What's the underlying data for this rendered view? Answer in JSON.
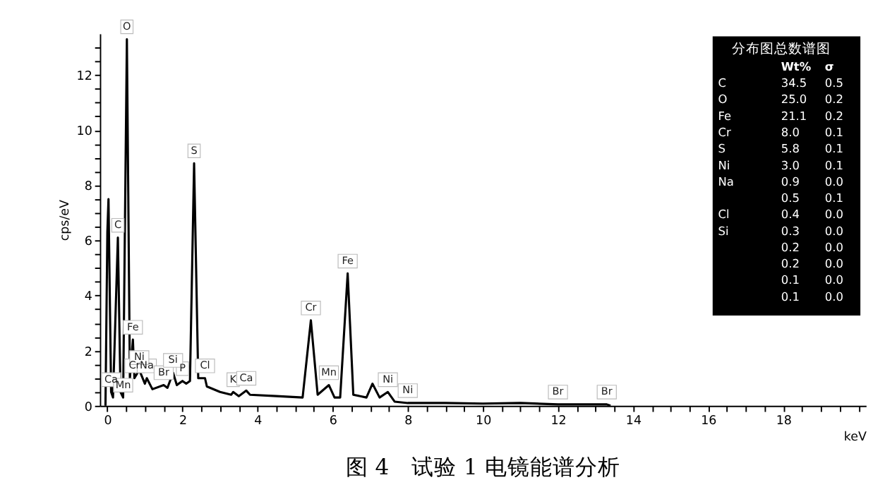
{
  "chart_data": [
    {
      "type": "line",
      "title": "图 4　试验 1 电镜能谱分析",
      "xlabel": "keV",
      "ylabel": "cps/eV",
      "x": [
        -0.05,
        0.0,
        0.03,
        0.1,
        0.15,
        0.28,
        0.35,
        0.42,
        0.52,
        0.6,
        0.68,
        0.72,
        0.85,
        1.0,
        1.05,
        1.2,
        1.5,
        1.6,
        1.75,
        1.85,
        2.0,
        2.1,
        2.2,
        2.31,
        2.42,
        2.6,
        2.65,
        3.0,
        3.3,
        3.35,
        3.5,
        3.7,
        3.8,
        4.5,
        5.2,
        5.42,
        5.6,
        5.9,
        6.05,
        6.2,
        6.4,
        6.55,
        6.9,
        7.06,
        7.25,
        7.47,
        7.65,
        8.0,
        9.0,
        10.0,
        11.0,
        12.0,
        13.3,
        13.4
      ],
      "series": [
        {
          "color": "#000000",
          "values": [
            0,
            6.3,
            7.5,
            0.5,
            0.3,
            6.1,
            0.5,
            0.3,
            13.3,
            1.0,
            2.4,
            1.0,
            1.3,
            0.8,
            1.0,
            0.6,
            0.75,
            0.65,
            1.2,
            0.75,
            0.9,
            0.8,
            0.9,
            8.8,
            1.0,
            1.0,
            0.7,
            0.5,
            0.4,
            0.5,
            0.35,
            0.55,
            0.4,
            0.35,
            0.3,
            3.1,
            0.4,
            0.75,
            0.3,
            0.3,
            4.8,
            0.4,
            0.3,
            0.8,
            0.3,
            0.5,
            0.15,
            0.1,
            0.1,
            0.08,
            0.1,
            0.05,
            0.05,
            0
          ]
        }
      ],
      "xlim": [
        -0.2,
        20.2
      ],
      "ylim": [
        0,
        13.5
      ],
      "xticks": [
        0,
        {
          "value": 0.5,
          "label": null
        },
        {
          "value": 1,
          "label": null
        },
        {
          "value": 1.5,
          "label": null
        },
        2,
        {
          "value": 2.5,
          "label": null
        },
        {
          "value": 3,
          "label": null
        },
        {
          "value": 3.5,
          "label": null
        },
        4,
        {
          "value": 4.5,
          "label": null
        },
        {
          "value": 5,
          "label": null
        },
        {
          "value": 5.5,
          "label": null
        },
        6,
        {
          "value": 6.5,
          "label": null
        },
        {
          "value": 7,
          "label": null
        },
        {
          "value": 7.5,
          "label": null
        },
        8,
        {
          "value": 8.5,
          "label": null
        },
        {
          "value": 9,
          "label": null
        },
        {
          "value": 9.5,
          "label": null
        },
        10,
        {
          "value": 10.5,
          "label": null
        },
        {
          "value": 11,
          "label": null
        },
        {
          "value": 11.5,
          "label": null
        },
        12,
        {
          "value": 12.5,
          "label": null
        },
        {
          "value": 13,
          "label": null
        },
        {
          "value": 13.5,
          "label": null
        },
        14,
        {
          "value": 14.5,
          "label": null
        },
        {
          "value": 15,
          "label": null
        },
        {
          "value": 15.5,
          "label": null
        },
        16,
        {
          "value": 16.5,
          "label": null
        },
        {
          "value": 17,
          "label": null
        },
        {
          "value": 17.5,
          "label": null
        },
        18,
        {
          "value": 18.5,
          "label": null
        },
        {
          "value": 19,
          "label": null
        },
        {
          "value": 19.5,
          "label": null
        },
        {
          "value": 20,
          "label": null
        }
      ],
      "yticks": [
        0,
        {
          "value": 0.5,
          "label": null
        },
        {
          "value": 1,
          "label": null
        },
        {
          "value": 1.5,
          "label": null
        },
        2,
        {
          "value": 2.5,
          "label": null
        },
        {
          "value": 3,
          "label": null
        },
        {
          "value": 3.5,
          "label": null
        },
        4,
        {
          "value": 4.5,
          "label": null
        },
        {
          "value": 5,
          "label": null
        },
        {
          "value": 5.5,
          "label": null
        },
        6,
        {
          "value": 6.5,
          "label": null
        },
        {
          "value": 7,
          "label": null
        },
        {
          "value": 7.5,
          "label": null
        },
        8,
        {
          "value": 8.5,
          "label": null
        },
        {
          "value": 9,
          "label": null
        },
        {
          "value": 9.5,
          "label": null
        },
        10,
        {
          "value": 10.5,
          "label": null
        },
        {
          "value": 11,
          "label": null
        },
        {
          "value": 11.5,
          "label": null
        },
        12,
        {
          "value": 12.5,
          "label": null
        },
        {
          "value": 13,
          "label": null
        }
      ],
      "grid": false,
      "annotations": [
        {
          "text": "O",
          "x": 0.52,
          "y": 13.3
        },
        {
          "text": "C",
          "x": 0.28,
          "y": 6.1
        },
        {
          "text": "Fe",
          "x": 0.68,
          "y": 2.4
        },
        {
          "text": "Cr",
          "x": 0.72,
          "y": 1.0
        },
        {
          "text": "Ca",
          "x": 0.1,
          "y": 0.5
        },
        {
          "text": "Na",
          "x": 1.05,
          "y": 1.0
        },
        {
          "text": "Ni",
          "x": 0.85,
          "y": 1.3
        },
        {
          "text": "Mn",
          "x": 0.42,
          "y": 0.3
        },
        {
          "text": "Br",
          "x": 1.5,
          "y": 0.75
        },
        {
          "text": "P",
          "x": 2.0,
          "y": 0.9
        },
        {
          "text": "Si",
          "x": 1.75,
          "y": 1.2
        },
        {
          "text": "S",
          "x": 2.31,
          "y": 8.8
        },
        {
          "text": "Cl",
          "x": 2.6,
          "y": 1.0
        },
        {
          "text": "K",
          "x": 3.35,
          "y": 0.5
        },
        {
          "text": "Ca",
          "x": 3.7,
          "y": 0.55
        },
        {
          "text": "Cr",
          "x": 5.42,
          "y": 3.1
        },
        {
          "text": "Mn",
          "x": 5.9,
          "y": 0.75
        },
        {
          "text": "Fe",
          "x": 6.4,
          "y": 4.8
        },
        {
          "text": "Ni",
          "x": 7.47,
          "y": 0.5
        },
        {
          "text": "Ni",
          "x": 8.0,
          "y": 0.1
        },
        {
          "text": "Br",
          "x": 12.0,
          "y": 0.05
        },
        {
          "text": "Br",
          "x": 13.3,
          "y": 0.05
        }
      ]
    },
    {
      "type": "other",
      "legend_title": "分布图总数谱图",
      "categories": [
        "Wt%",
        "σ"
      ],
      "series": [
        {
          "name": "C",
          "values": [
            34.5,
            0.5
          ],
          "value_labels": [
            "34.5",
            "0.5"
          ]
        },
        {
          "name": "O",
          "values": [
            25.0,
            0.2
          ],
          "value_labels": [
            "25.0",
            "0.2"
          ]
        },
        {
          "name": "Fe",
          "values": [
            21.1,
            0.2
          ],
          "value_labels": [
            "21.1",
            "0.2"
          ]
        },
        {
          "name": "Cr",
          "values": [
            8.0,
            0.1
          ],
          "value_labels": [
            "8.0",
            "0.1"
          ]
        },
        {
          "name": "S",
          "values": [
            5.8,
            0.1
          ],
          "value_labels": [
            "5.8",
            "0.1"
          ]
        },
        {
          "name": "Ni",
          "values": [
            3.0,
            0.1
          ],
          "value_labels": [
            "3.0",
            "0.1"
          ]
        },
        {
          "name": "Na",
          "values": [
            0.9,
            0.0
          ],
          "value_labels": [
            "0.9",
            "0.0"
          ]
        },
        {
          "values": [
            0.5,
            0.1
          ],
          "value_labels": [
            "0.5",
            "0.1"
          ]
        },
        {
          "name": "Cl",
          "values": [
            0.4,
            0.0
          ],
          "value_labels": [
            "0.4",
            "0.0"
          ]
        },
        {
          "name": "Si",
          "values": [
            0.3,
            0.0
          ],
          "value_labels": [
            "0.3",
            "0.0"
          ]
        },
        {
          "values": [
            0.2,
            0.0
          ],
          "value_labels": [
            "0.2",
            "0.0"
          ]
        },
        {
          "values": [
            0.2,
            0.0
          ],
          "value_labels": [
            "0.2",
            "0.0"
          ]
        },
        {
          "values": [
            0.1,
            0.0
          ],
          "value_labels": [
            "0.1",
            "0.0"
          ]
        },
        {
          "values": [
            0.1,
            0.0
          ],
          "value_labels": [
            "0.1",
            "0.0"
          ]
        }
      ],
      "data_labels": true
    }
  ]
}
